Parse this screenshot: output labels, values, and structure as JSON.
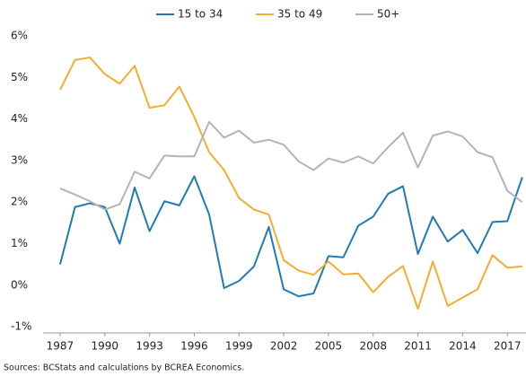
{
  "chart_data": {
    "type": "line",
    "x": [
      1987,
      1988,
      1989,
      1990,
      1991,
      1992,
      1993,
      1994,
      1995,
      1996,
      1997,
      1998,
      1999,
      2000,
      2001,
      2002,
      2003,
      2004,
      2005,
      2006,
      2007,
      2008,
      2009,
      2010,
      2011,
      2012,
      2013,
      2014,
      2015,
      2016,
      2017,
      2018
    ],
    "series": [
      {
        "name": "15 to 34",
        "color": "#1f7bb6",
        "values": [
          0.5,
          1.88,
          1.97,
          1.88,
          1.0,
          2.35,
          1.3,
          2.02,
          1.92,
          2.62,
          1.7,
          -0.07,
          0.1,
          0.45,
          1.4,
          -0.1,
          -0.27,
          -0.2,
          0.7,
          0.67,
          1.43,
          1.65,
          2.2,
          2.38,
          0.75,
          1.65,
          1.05,
          1.33,
          0.77,
          1.52,
          1.54,
          2.6
        ]
      },
      {
        "name": "35 to 49",
        "color": "#f4ad2f",
        "values": [
          4.7,
          5.42,
          5.48,
          5.08,
          4.85,
          5.28,
          4.27,
          4.33,
          4.78,
          4.05,
          3.2,
          2.77,
          2.1,
          1.82,
          1.7,
          0.6,
          0.35,
          0.25,
          0.57,
          0.26,
          0.28,
          -0.17,
          0.2,
          0.46,
          -0.57,
          0.57,
          -0.5,
          -0.3,
          -0.1,
          0.72,
          0.42,
          0.45
        ]
      },
      {
        "name": "50+",
        "color": "#b4b4b4",
        "values": [
          2.33,
          2.18,
          2.02,
          1.82,
          1.95,
          2.73,
          2.57,
          3.12,
          3.1,
          3.1,
          3.93,
          3.55,
          3.72,
          3.43,
          3.5,
          3.38,
          2.98,
          2.77,
          3.05,
          2.95,
          3.1,
          2.93,
          3.32,
          3.67,
          2.83,
          3.6,
          3.7,
          3.58,
          3.2,
          3.08,
          2.27,
          2.0
        ]
      }
    ],
    "xlim": [
      1985.86,
      2018.25
    ],
    "xticks": [
      1987,
      1990,
      1993,
      1996,
      1999,
      2002,
      2005,
      2008,
      2011,
      2014,
      2017
    ],
    "ylim": [
      -1.15,
      6
    ],
    "yticks": [
      {
        "value": -1,
        "label": "-1%"
      },
      {
        "value": 0,
        "label": "0%"
      },
      {
        "value": 1,
        "label": "1%"
      },
      {
        "value": 2,
        "label": "2%"
      },
      {
        "value": 3,
        "label": "3%"
      },
      {
        "value": 4,
        "label": "4%"
      },
      {
        "value": 5,
        "label": "5%"
      },
      {
        "value": 6,
        "label": "6%"
      }
    ],
    "grid": false,
    "legend": "top",
    "source": "Sources: BCStats and calculations by BCREA Economics."
  }
}
